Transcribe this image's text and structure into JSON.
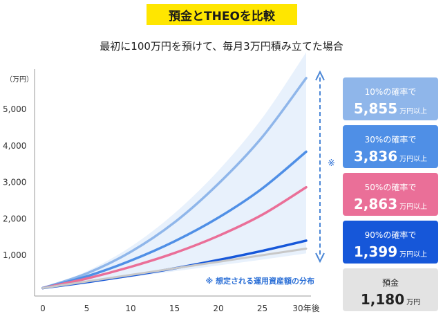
{
  "header": {
    "title": "預金とTHEOを比較",
    "subtitle": "最初に100万円を預けて、毎月3万円積み立てた場合"
  },
  "colors": {
    "badge": "#ffe600",
    "p10": "#8fb6ea",
    "p30": "#4f8fe6",
    "p50": "#ea6f98",
    "p90": "#1657d9",
    "savings": "#c8c8c8",
    "band": "#e8f1fc",
    "arrow": "#4a86d6"
  },
  "chart_data": {
    "type": "line",
    "ylabel": "（万円）",
    "x": [
      0,
      5,
      10,
      15,
      20,
      25,
      30
    ],
    "xtick_labels": [
      "0",
      "5",
      "10",
      "15",
      "20",
      "25",
      "30年後"
    ],
    "xlim": [
      0,
      30
    ],
    "ylim": [
      0,
      6000
    ],
    "yticks": [
      1000,
      2000,
      3000,
      4000,
      5000
    ],
    "ytick_labels": [
      "1,000",
      "2,000",
      "3,000",
      "4,000",
      "5,000"
    ],
    "series": [
      {
        "key": "p10",
        "values": [
          100,
          500,
          1090,
          1900,
          2960,
          4240,
          5855
        ]
      },
      {
        "key": "p30",
        "values": [
          100,
          420,
          850,
          1380,
          2030,
          2830,
          3836
        ]
      },
      {
        "key": "p50",
        "values": [
          100,
          360,
          680,
          1060,
          1530,
          2110,
          2863
        ]
      },
      {
        "key": "p90",
        "values": [
          100,
          260,
          440,
          640,
          870,
          1120,
          1399
        ]
      },
      {
        "key": "savings",
        "values": [
          100,
          280,
          460,
          640,
          820,
          1000,
          1180
        ]
      }
    ],
    "band": {
      "upper": [
        100,
        560,
        1230,
        2150,
        3320,
        4760,
        6560
      ],
      "lower": [
        100,
        250,
        400,
        560,
        720,
        880,
        1050
      ]
    },
    "band_note": "※ 想定される運用資産額の分布",
    "arrow_mark": "※"
  },
  "cards": [
    {
      "key": "p10",
      "label": "10%の確率で",
      "value": "5,855",
      "unit": "万円以上"
    },
    {
      "key": "p30",
      "label": "30%の確率で",
      "value": "3,836",
      "unit": "万円以上"
    },
    {
      "key": "p50",
      "label": "50%の確率で",
      "value": "2,863",
      "unit": "万円以上"
    },
    {
      "key": "p90",
      "label": "90%の確率で",
      "value": "1,399",
      "unit": "万円以上"
    },
    {
      "key": "savings",
      "label": "預金",
      "value": "1,180",
      "unit": "万円"
    }
  ]
}
